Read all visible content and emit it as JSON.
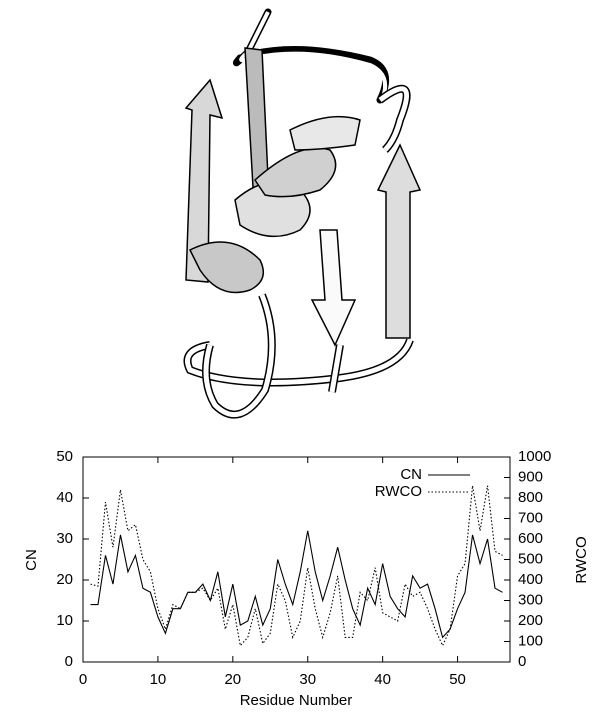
{
  "chart_data": {
    "type": "line",
    "x_label": "Residue Number",
    "y_label": "CN",
    "y2_label": "RWCO",
    "x": [
      1,
      2,
      3,
      4,
      5,
      6,
      7,
      8,
      9,
      10,
      11,
      12,
      13,
      14,
      15,
      16,
      17,
      18,
      19,
      20,
      21,
      22,
      23,
      24,
      25,
      26,
      27,
      28,
      29,
      30,
      31,
      32,
      33,
      34,
      35,
      36,
      37,
      38,
      39,
      40,
      41,
      42,
      43,
      44,
      45,
      46,
      47,
      48,
      49,
      50,
      51,
      52,
      53,
      54,
      55,
      56
    ],
    "series": [
      {
        "name": "CN",
        "color": "#000000",
        "dash": "solid",
        "axis": "y",
        "values": [
          14,
          14,
          26,
          19,
          31,
          22,
          26,
          18,
          17,
          11,
          7,
          13,
          13,
          17,
          17,
          19,
          15,
          22,
          11,
          19,
          9,
          10,
          16,
          9,
          13,
          25,
          19,
          14,
          22,
          32,
          22,
          15,
          21,
          28,
          20,
          13,
          9,
          18,
          14,
          24,
          16,
          13,
          11,
          21,
          18,
          19,
          13,
          6,
          8,
          13,
          17,
          31,
          24,
          30,
          18,
          17
        ]
      },
      {
        "name": "RWCO",
        "color": "#000000",
        "dash": "dotted",
        "axis": "y2",
        "values": [
          380,
          370,
          780,
          560,
          840,
          640,
          670,
          500,
          440,
          260,
          160,
          280,
          260,
          340,
          340,
          360,
          300,
          360,
          160,
          280,
          80,
          120,
          260,
          90,
          140,
          380,
          300,
          120,
          200,
          460,
          260,
          120,
          240,
          420,
          120,
          120,
          340,
          300,
          460,
          240,
          220,
          200,
          380,
          320,
          340,
          260,
          160,
          80,
          160,
          420,
          480,
          860,
          640,
          860,
          540,
          520
        ]
      }
    ],
    "xlim": [
      0,
      57
    ],
    "xticks": [
      0,
      10,
      20,
      30,
      40,
      50
    ],
    "ylim": [
      0,
      50
    ],
    "yticks": [
      0,
      10,
      20,
      30,
      40,
      50
    ],
    "y2lim": [
      0,
      1000
    ],
    "y2ticks": [
      0,
      100,
      200,
      300,
      400,
      500,
      600,
      700,
      800,
      900,
      1000
    ],
    "legend": "top-right",
    "grid": false
  }
}
